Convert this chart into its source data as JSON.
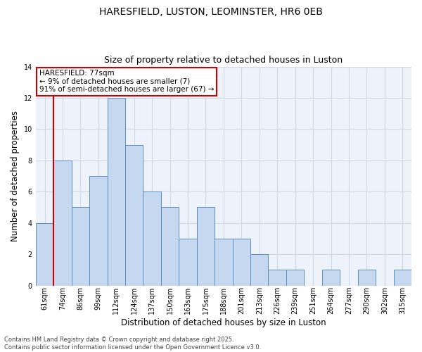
{
  "title_line1": "HARESFIELD, LUSTON, LEOMINSTER, HR6 0EB",
  "title_line2": "Size of property relative to detached houses in Luston",
  "xlabel": "Distribution of detached houses by size in Luston",
  "ylabel": "Number of detached properties",
  "bin_labels": [
    "61sqm",
    "74sqm",
    "86sqm",
    "99sqm",
    "112sqm",
    "124sqm",
    "137sqm",
    "150sqm",
    "163sqm",
    "175sqm",
    "188sqm",
    "201sqm",
    "213sqm",
    "226sqm",
    "239sqm",
    "251sqm",
    "264sqm",
    "277sqm",
    "290sqm",
    "302sqm",
    "315sqm"
  ],
  "bar_values": [
    4,
    8,
    5,
    7,
    12,
    9,
    6,
    5,
    3,
    5,
    3,
    3,
    2,
    1,
    1,
    0,
    1,
    0,
    1,
    0,
    1
  ],
  "bar_color": "#c5d8f0",
  "bar_edge_color": "#5a8fc2",
  "grid_color": "#d0d8e8",
  "background_color": "#eef2fa",
  "ylim": [
    0,
    14
  ],
  "yticks": [
    0,
    2,
    4,
    6,
    8,
    10,
    12,
    14
  ],
  "annotation_text": "HARESFIELD: 77sqm\n← 9% of detached houses are smaller (7)\n91% of semi-detached houses are larger (67) →",
  "annotation_box_color": "#ffffff",
  "annotation_box_edge_color": "#cc0000",
  "vline_color": "#cc0000",
  "footer_text": "Contains HM Land Registry data © Crown copyright and database right 2025.\nContains public sector information licensed under the Open Government Licence v3.0.",
  "title_fontsize": 10,
  "subtitle_fontsize": 9,
  "label_fontsize": 8.5,
  "tick_fontsize": 7,
  "annot_fontsize": 7.5,
  "footer_fontsize": 6
}
